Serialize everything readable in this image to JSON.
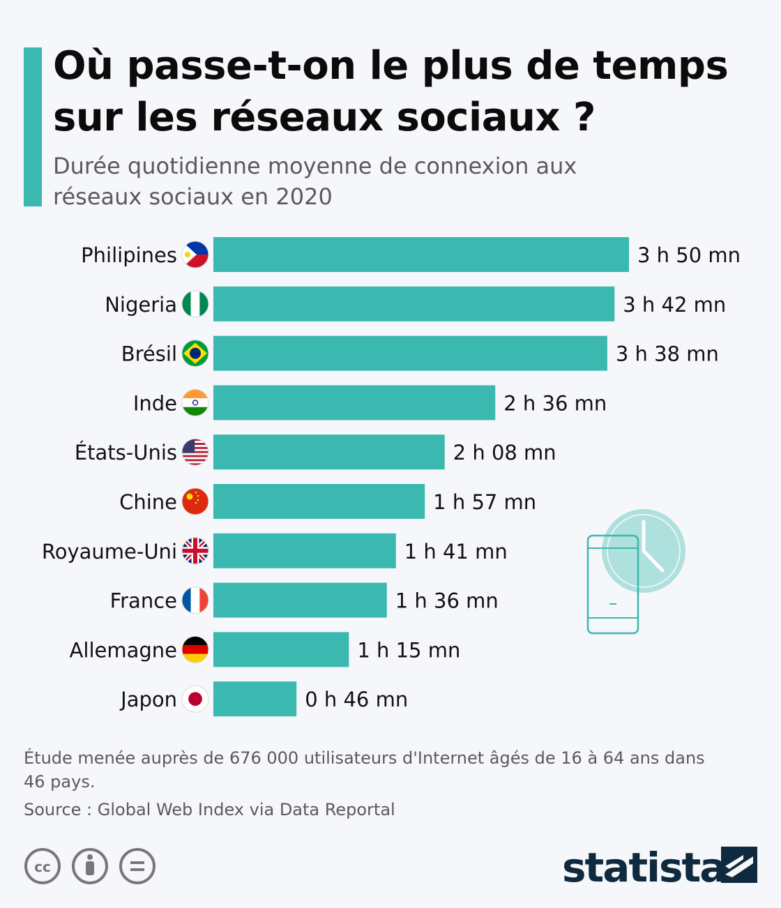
{
  "header": {
    "title": "Où passe-t-on le plus de temps sur les réseaux sociaux ?",
    "subtitle": "Durée quotidienne moyenne de connexion aux réseaux sociaux en 2020"
  },
  "chart_data": {
    "type": "bar",
    "orientation": "horizontal",
    "unit": "minutes",
    "categories": [
      "Philipines",
      "Nigeria",
      "Brésil",
      "Inde",
      "États-Unis",
      "Chine",
      "Royaume-Uni",
      "France",
      "Allemagne",
      "Japon"
    ],
    "values": [
      230,
      222,
      218,
      156,
      128,
      117,
      101,
      96,
      75,
      46
    ],
    "value_labels": [
      "3 h 50 mn",
      "3 h 42 mn",
      "3 h 38 mn",
      "2 h 36 mn",
      "2 h 08 mn",
      "1 h 57 mn",
      "1 h 41 mn",
      "1 h 36 mn",
      "1 h 15 mn",
      "0 h 46 mn"
    ],
    "flags": [
      "philippines-flag-icon",
      "nigeria-flag-icon",
      "brazil-flag-icon",
      "india-flag-icon",
      "usa-flag-icon",
      "china-flag-icon",
      "uk-flag-icon",
      "france-flag-icon",
      "germany-flag-icon",
      "japan-flag-icon"
    ],
    "bar_color": "#3bb8b0",
    "title": "Où passe-t-on le plus de temps sur les réseaux sociaux ?",
    "grid": false,
    "legend": "none"
  },
  "footer": {
    "note": "Étude menée auprès de 676 000 utilisateurs d'Internet âgés de 16 à 64 ans dans 46 pays.",
    "source": "Source : Global Web Index via Data Reportal",
    "license_icons": [
      "cc-icon",
      "by-icon",
      "nd-icon"
    ],
    "brand": "statista"
  },
  "colors": {
    "accent": "#3bb8b0",
    "brand_navy": "#0f2a3f"
  }
}
